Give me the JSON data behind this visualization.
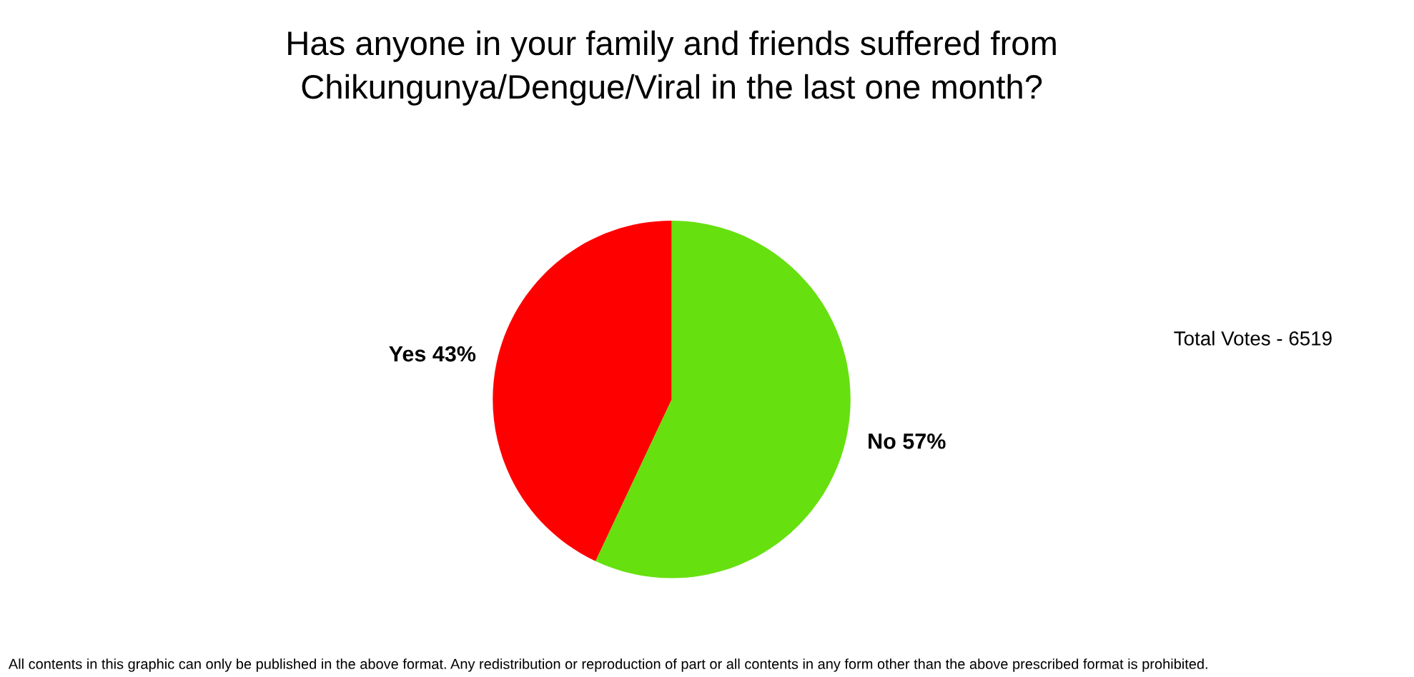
{
  "chart_data": {
    "type": "pie",
    "title": "Has anyone in your family and friends suffered from\nChikungunya/Dengue/Viral in the last one month?",
    "categories": [
      "No",
      "Yes"
    ],
    "values": [
      57,
      43
    ],
    "value_labels": [
      "57%",
      "43%"
    ],
    "colors": [
      "#66e00f",
      "#ff0000"
    ],
    "annotations": [
      "Total Votes - 6519",
      "All contents in this graphic can only be published in the above format. Any redistribution or reproduction of part or all contents in any form other than the above prescribed format is prohibited."
    ]
  }
}
